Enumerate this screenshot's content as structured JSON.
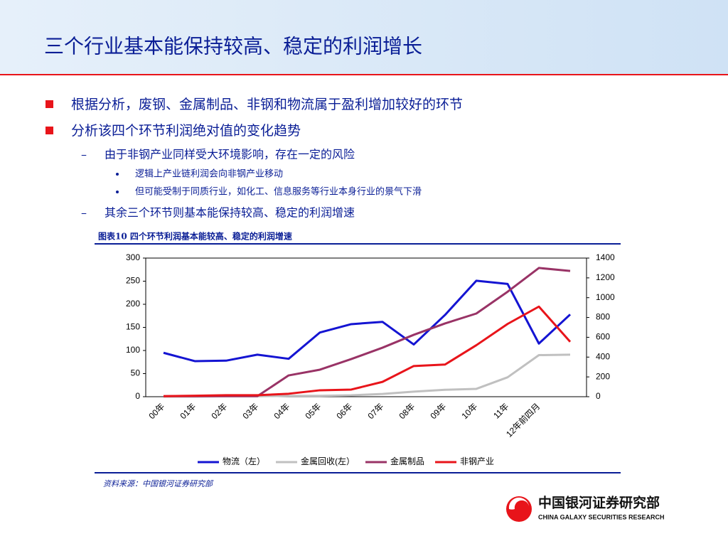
{
  "title": "三个行业基本能保持较高、稳定的利润增长",
  "body": [
    "根据分析，废钢、金属制品、非钢和物流属于盈利增加较好的环节",
    "分析该四个环节利润绝对值的变化趋势",
    "由于非钢产业同样受大环境影响，存在一定的风险",
    "逻辑上产业链利润会向非钢产业移动",
    "但可能受制于同质行业，如化工、信息服务等行业本身行业的景气下滑",
    "其余三个环节则基本能保持较高、稳定的利润增速"
  ],
  "source": "资料来源：中国银河证券研究部",
  "logo": {
    "name": "中国银河证券研究部",
    "english": "CHINA GALAXY SECURITIES RESEARCH"
  },
  "chart_data": {
    "type": "line",
    "title": "图表10  四个环节利润基本能较高、稳定的利润增速",
    "categories": [
      "00年",
      "01年",
      "02年",
      "03年",
      "04年",
      "05年",
      "06年",
      "07年",
      "08年",
      "09年",
      "10年",
      "11年",
      "12年前四月",
      null
    ],
    "series": [
      {
        "name": "物流（左）",
        "color": "#1414d2",
        "values": [
          95,
          77,
          78,
          91,
          82,
          139,
          157,
          162,
          113,
          177,
          251,
          244,
          115,
          178
        ]
      },
      {
        "name": "金属回收(左）",
        "color": "#c0c0c0",
        "values": [
          0,
          0,
          1,
          1,
          2,
          2,
          3,
          6,
          11,
          15,
          17,
          42,
          90,
          91
        ]
      },
      {
        "name": "金属制品",
        "color": "#993366",
        "axis": "y2",
        "values": [
          5,
          5,
          5,
          5,
          215,
          273,
          380,
          495,
          625,
          740,
          840,
          1060,
          1300,
          1270
        ]
      },
      {
        "name": "非钢产业",
        "color": "#e8141a",
        "axis": "y2",
        "values": [
          5,
          10,
          15,
          15,
          30,
          65,
          72,
          150,
          310,
          325,
          520,
          735,
          910,
          555
        ]
      }
    ],
    "ylim": [
      0,
      300
    ],
    "yticks": [
      0,
      50,
      100,
      150,
      200,
      250,
      300
    ],
    "y2lim": [
      0,
      1400
    ],
    "y2ticks": [
      0,
      200,
      400,
      600,
      800,
      1000,
      1200,
      1400
    ],
    "legend": "bottom"
  }
}
